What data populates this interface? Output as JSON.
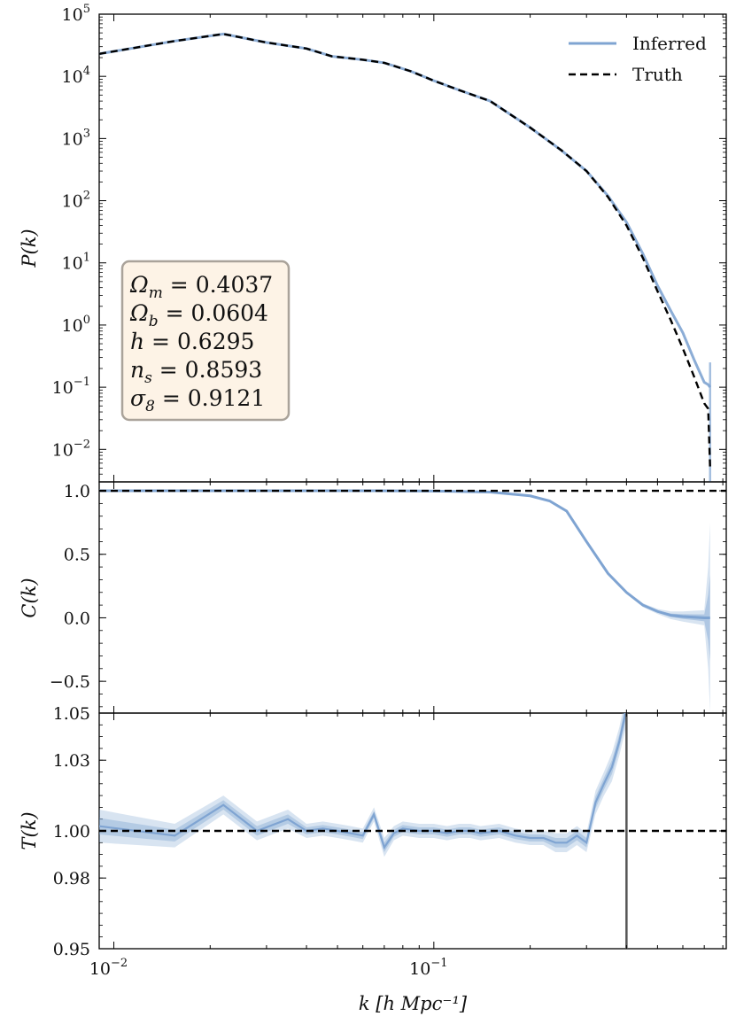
{
  "chart_data": [
    {
      "type": "line",
      "panel": "power-spectrum",
      "ylabel": "P(k)",
      "xscale": "log",
      "yscale": "log",
      "xlim": [
        0.009,
        0.82
      ],
      "ylim": [
        0.003,
        100000
      ],
      "grid": false,
      "legend_position": "top-right",
      "yticks": [
        {
          "value": 100000,
          "base": "10",
          "exp": "5"
        },
        {
          "value": 10000,
          "base": "10",
          "exp": "4"
        },
        {
          "value": 1000,
          "base": "10",
          "exp": "3"
        },
        {
          "value": 100,
          "base": "10",
          "exp": "2"
        },
        {
          "value": 10,
          "base": "10",
          "exp": "1"
        },
        {
          "value": 1,
          "base": "10",
          "exp": "0"
        },
        {
          "value": 0.1,
          "base": "10",
          "exp": "−1"
        },
        {
          "value": 0.01,
          "base": "10",
          "exp": "−2"
        }
      ],
      "series": [
        {
          "name": "Inferred",
          "style": "solid",
          "color": "#7fa4d2",
          "x": [
            0.009,
            0.0155,
            0.022,
            0.03,
            0.04,
            0.048,
            0.06,
            0.07,
            0.085,
            0.1,
            0.12,
            0.15,
            0.2,
            0.25,
            0.3,
            0.35,
            0.4,
            0.45,
            0.5,
            0.55,
            0.6,
            0.65,
            0.7,
            0.72,
            0.73
          ],
          "y": [
            23000,
            37000,
            48000,
            35000,
            28000,
            21000,
            18500,
            16500,
            12000,
            8500,
            6000,
            4000,
            1500,
            650,
            300,
            120,
            45,
            14,
            4.3,
            1.7,
            0.75,
            0.28,
            0.12,
            0.11,
            0.1
          ]
        },
        {
          "name": "Truth",
          "style": "dashed",
          "color": "#000000",
          "x": [
            0.009,
            0.0155,
            0.022,
            0.03,
            0.04,
            0.048,
            0.06,
            0.07,
            0.085,
            0.1,
            0.12,
            0.15,
            0.2,
            0.25,
            0.3,
            0.35,
            0.4,
            0.45,
            0.5,
            0.55,
            0.6,
            0.65,
            0.7,
            0.72,
            0.73
          ],
          "y": [
            23000,
            37000,
            48000,
            35000,
            28000,
            21000,
            18500,
            16500,
            12000,
            8500,
            6000,
            4000,
            1500,
            650,
            300,
            115,
            40,
            12,
            3.5,
            1.2,
            0.42,
            0.15,
            0.055,
            0.045,
            0.005
          ]
        }
      ],
      "annotation": {
        "position": "middle-left",
        "facecolor": "#fdf3e6",
        "lines": [
          {
            "sym": "Ω",
            "sub": "m",
            "val": " = 0.4037"
          },
          {
            "sym": "Ω",
            "sub": "b",
            "val": " = 0.0604"
          },
          {
            "sym": "h",
            "sub": "",
            "val": " = 0.6295"
          },
          {
            "sym": "n",
            "sub": "s",
            "val": " = 0.8593"
          },
          {
            "sym": "σ",
            "sub": "8",
            "val": " = 0.9121"
          }
        ]
      }
    },
    {
      "type": "line",
      "panel": "cross-correlation",
      "ylabel": "C(k)",
      "xscale": "log",
      "xlim": [
        0.009,
        0.82
      ],
      "ylim": [
        -0.75,
        1.07
      ],
      "yticks": [
        {
          "value": 1.0,
          "label": "1.0"
        },
        {
          "value": 0.5,
          "label": "0.5"
        },
        {
          "value": 0.0,
          "label": "0.0"
        },
        {
          "value": -0.5,
          "label": "−0.5"
        }
      ],
      "reference_line": 1.0,
      "series": [
        {
          "name": "Inferred",
          "x": [
            0.009,
            0.015,
            0.022,
            0.03,
            0.045,
            0.065,
            0.1,
            0.15,
            0.2,
            0.23,
            0.26,
            0.3,
            0.35,
            0.4,
            0.45,
            0.5,
            0.55,
            0.6,
            0.65,
            0.7,
            0.72,
            0.73
          ],
          "y": [
            1.0,
            1.0,
            1.0,
            1.0,
            1.0,
            1.0,
            0.998,
            0.99,
            0.96,
            0.92,
            0.84,
            0.6,
            0.35,
            0.2,
            0.1,
            0.05,
            0.02,
            0.01,
            0.005,
            0.0,
            0.0,
            0.0
          ],
          "band": [
            0.0,
            0.0,
            0.0,
            0.0,
            0.0,
            0.0,
            0.0,
            0.0,
            0.0,
            0.0,
            0.01,
            0.01,
            0.01,
            0.01,
            0.015,
            0.02,
            0.03,
            0.04,
            0.05,
            0.06,
            0.4,
            0.75
          ]
        }
      ]
    },
    {
      "type": "line",
      "panel": "transfer-function",
      "ylabel": "T(k)",
      "xlabel": "k [h Mpc⁻¹]",
      "xscale": "log",
      "xlim": [
        0.009,
        0.82
      ],
      "ylim": [
        0.95,
        1.05
      ],
      "xticks": [
        {
          "value": 0.01,
          "base": "10",
          "exp": "−2"
        },
        {
          "value": 0.1,
          "base": "10",
          "exp": "−1"
        }
      ],
      "yticks": [
        {
          "value": 1.05,
          "label": "1.05"
        },
        {
          "value": 1.03,
          "label": "1.03"
        },
        {
          "value": 1.0,
          "label": "1.00"
        },
        {
          "value": 0.98,
          "label": "0.98"
        },
        {
          "value": 0.95,
          "label": "0.95"
        }
      ],
      "reference_line": 1.0,
      "vertical_line": 0.4,
      "series": [
        {
          "name": "Inferred",
          "x": [
            0.009,
            0.0155,
            0.022,
            0.028,
            0.035,
            0.04,
            0.045,
            0.05,
            0.055,
            0.06,
            0.065,
            0.07,
            0.075,
            0.08,
            0.09,
            0.1,
            0.11,
            0.12,
            0.13,
            0.14,
            0.16,
            0.18,
            0.2,
            0.22,
            0.24,
            0.26,
            0.28,
            0.3,
            0.32,
            0.34,
            0.36,
            0.38,
            0.4
          ],
          "y": [
            1.002,
            0.998,
            1.011,
            1.0,
            1.005,
            1.0,
            1.001,
            1.0,
            0.999,
            0.998,
            1.007,
            0.993,
            0.999,
            1.001,
            1.0,
            1.0,
            0.999,
            1.0,
            1.0,
            0.999,
            1.0,
            0.998,
            0.997,
            0.997,
            0.995,
            0.995,
            0.998,
            0.995,
            1.012,
            1.02,
            1.027,
            1.038,
            1.052
          ],
          "band": [
            0.007,
            0.005,
            0.004,
            0.004,
            0.004,
            0.003,
            0.003,
            0.003,
            0.003,
            0.003,
            0.003,
            0.004,
            0.003,
            0.003,
            0.003,
            0.003,
            0.003,
            0.003,
            0.003,
            0.003,
            0.003,
            0.003,
            0.003,
            0.003,
            0.004,
            0.004,
            0.004,
            0.004,
            0.005,
            0.005,
            0.006,
            0.006,
            0.007
          ]
        }
      ]
    }
  ]
}
